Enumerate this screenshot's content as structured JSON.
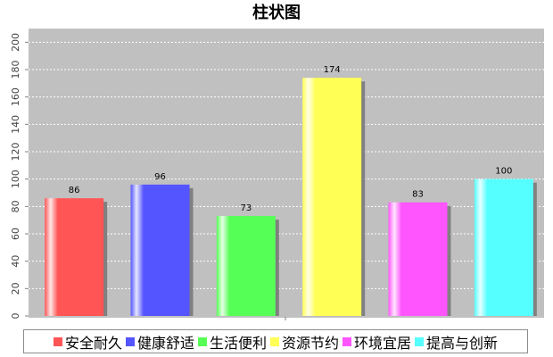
{
  "chart_data": {
    "type": "bar",
    "title": "柱状图",
    "categories": [
      "安全耐久",
      "健康舒适",
      "生活便利",
      "资源节约",
      "环境宜居",
      "提高与创新"
    ],
    "values": [
      86,
      96,
      73,
      174,
      83,
      100
    ],
    "data_labels": [
      "86",
      "96",
      "73",
      "174",
      "83",
      "100"
    ],
    "colors": [
      "#ff5555",
      "#5555ff",
      "#55ff55",
      "#ffff55",
      "#ff55ff",
      "#55ffff"
    ],
    "ylim": [
      0,
      210
    ],
    "yticks": [
      "0",
      "20",
      "40",
      "60",
      "80",
      "100",
      "120",
      "140",
      "160",
      "180",
      "200"
    ],
    "xlabel": "",
    "ylabel": "",
    "grid": true,
    "plot_background": "#c0c0c0",
    "legend_position": "bottom"
  }
}
